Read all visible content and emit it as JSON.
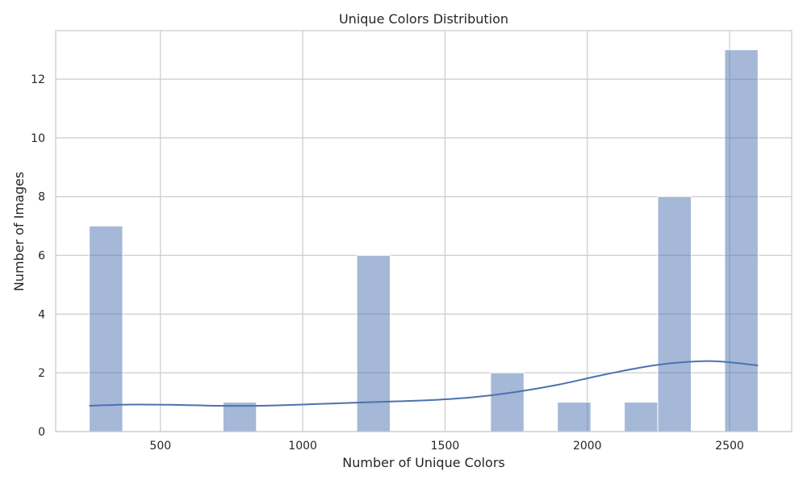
{
  "chart_data": {
    "type": "bar",
    "title": "Unique Colors Distribution",
    "xlabel": "Number of Unique Colors",
    "ylabel": "Number of Images",
    "xlim": [
      132,
      2718
    ],
    "ylim": [
      0,
      13.65
    ],
    "xticks": [
      500,
      1000,
      1500,
      2000,
      2500
    ],
    "yticks": [
      0,
      2,
      4,
      6,
      8,
      10,
      12
    ],
    "grid": true,
    "bin_width": 117.5,
    "bars": [
      {
        "x0": 250,
        "x1": 367.5,
        "count": 7
      },
      {
        "x0": 720,
        "x1": 837.5,
        "count": 1
      },
      {
        "x0": 1190,
        "x1": 1307.5,
        "count": 6
      },
      {
        "x0": 1660,
        "x1": 1777.5,
        "count": 2
      },
      {
        "x0": 1895,
        "x1": 2012.5,
        "count": 1
      },
      {
        "x0": 2130,
        "x1": 2247.5,
        "count": 1
      },
      {
        "x0": 2247.5,
        "x1": 2365,
        "count": 8
      },
      {
        "x0": 2482.5,
        "x1": 2600,
        "count": 13
      }
    ],
    "kde": {
      "x": [
        250,
        400,
        550,
        700,
        850,
        1000,
        1150,
        1300,
        1450,
        1600,
        1750,
        1900,
        2050,
        2200,
        2300,
        2420,
        2500,
        2600
      ],
      "y": [
        0.88,
        0.92,
        0.91,
        0.88,
        0.88,
        0.92,
        0.97,
        1.02,
        1.07,
        1.17,
        1.35,
        1.6,
        1.92,
        2.2,
        2.33,
        2.4,
        2.36,
        2.25
      ]
    },
    "bar_color": "#4c72b0",
    "bar_opacity": 0.5,
    "line_color": "#4c72b0"
  }
}
